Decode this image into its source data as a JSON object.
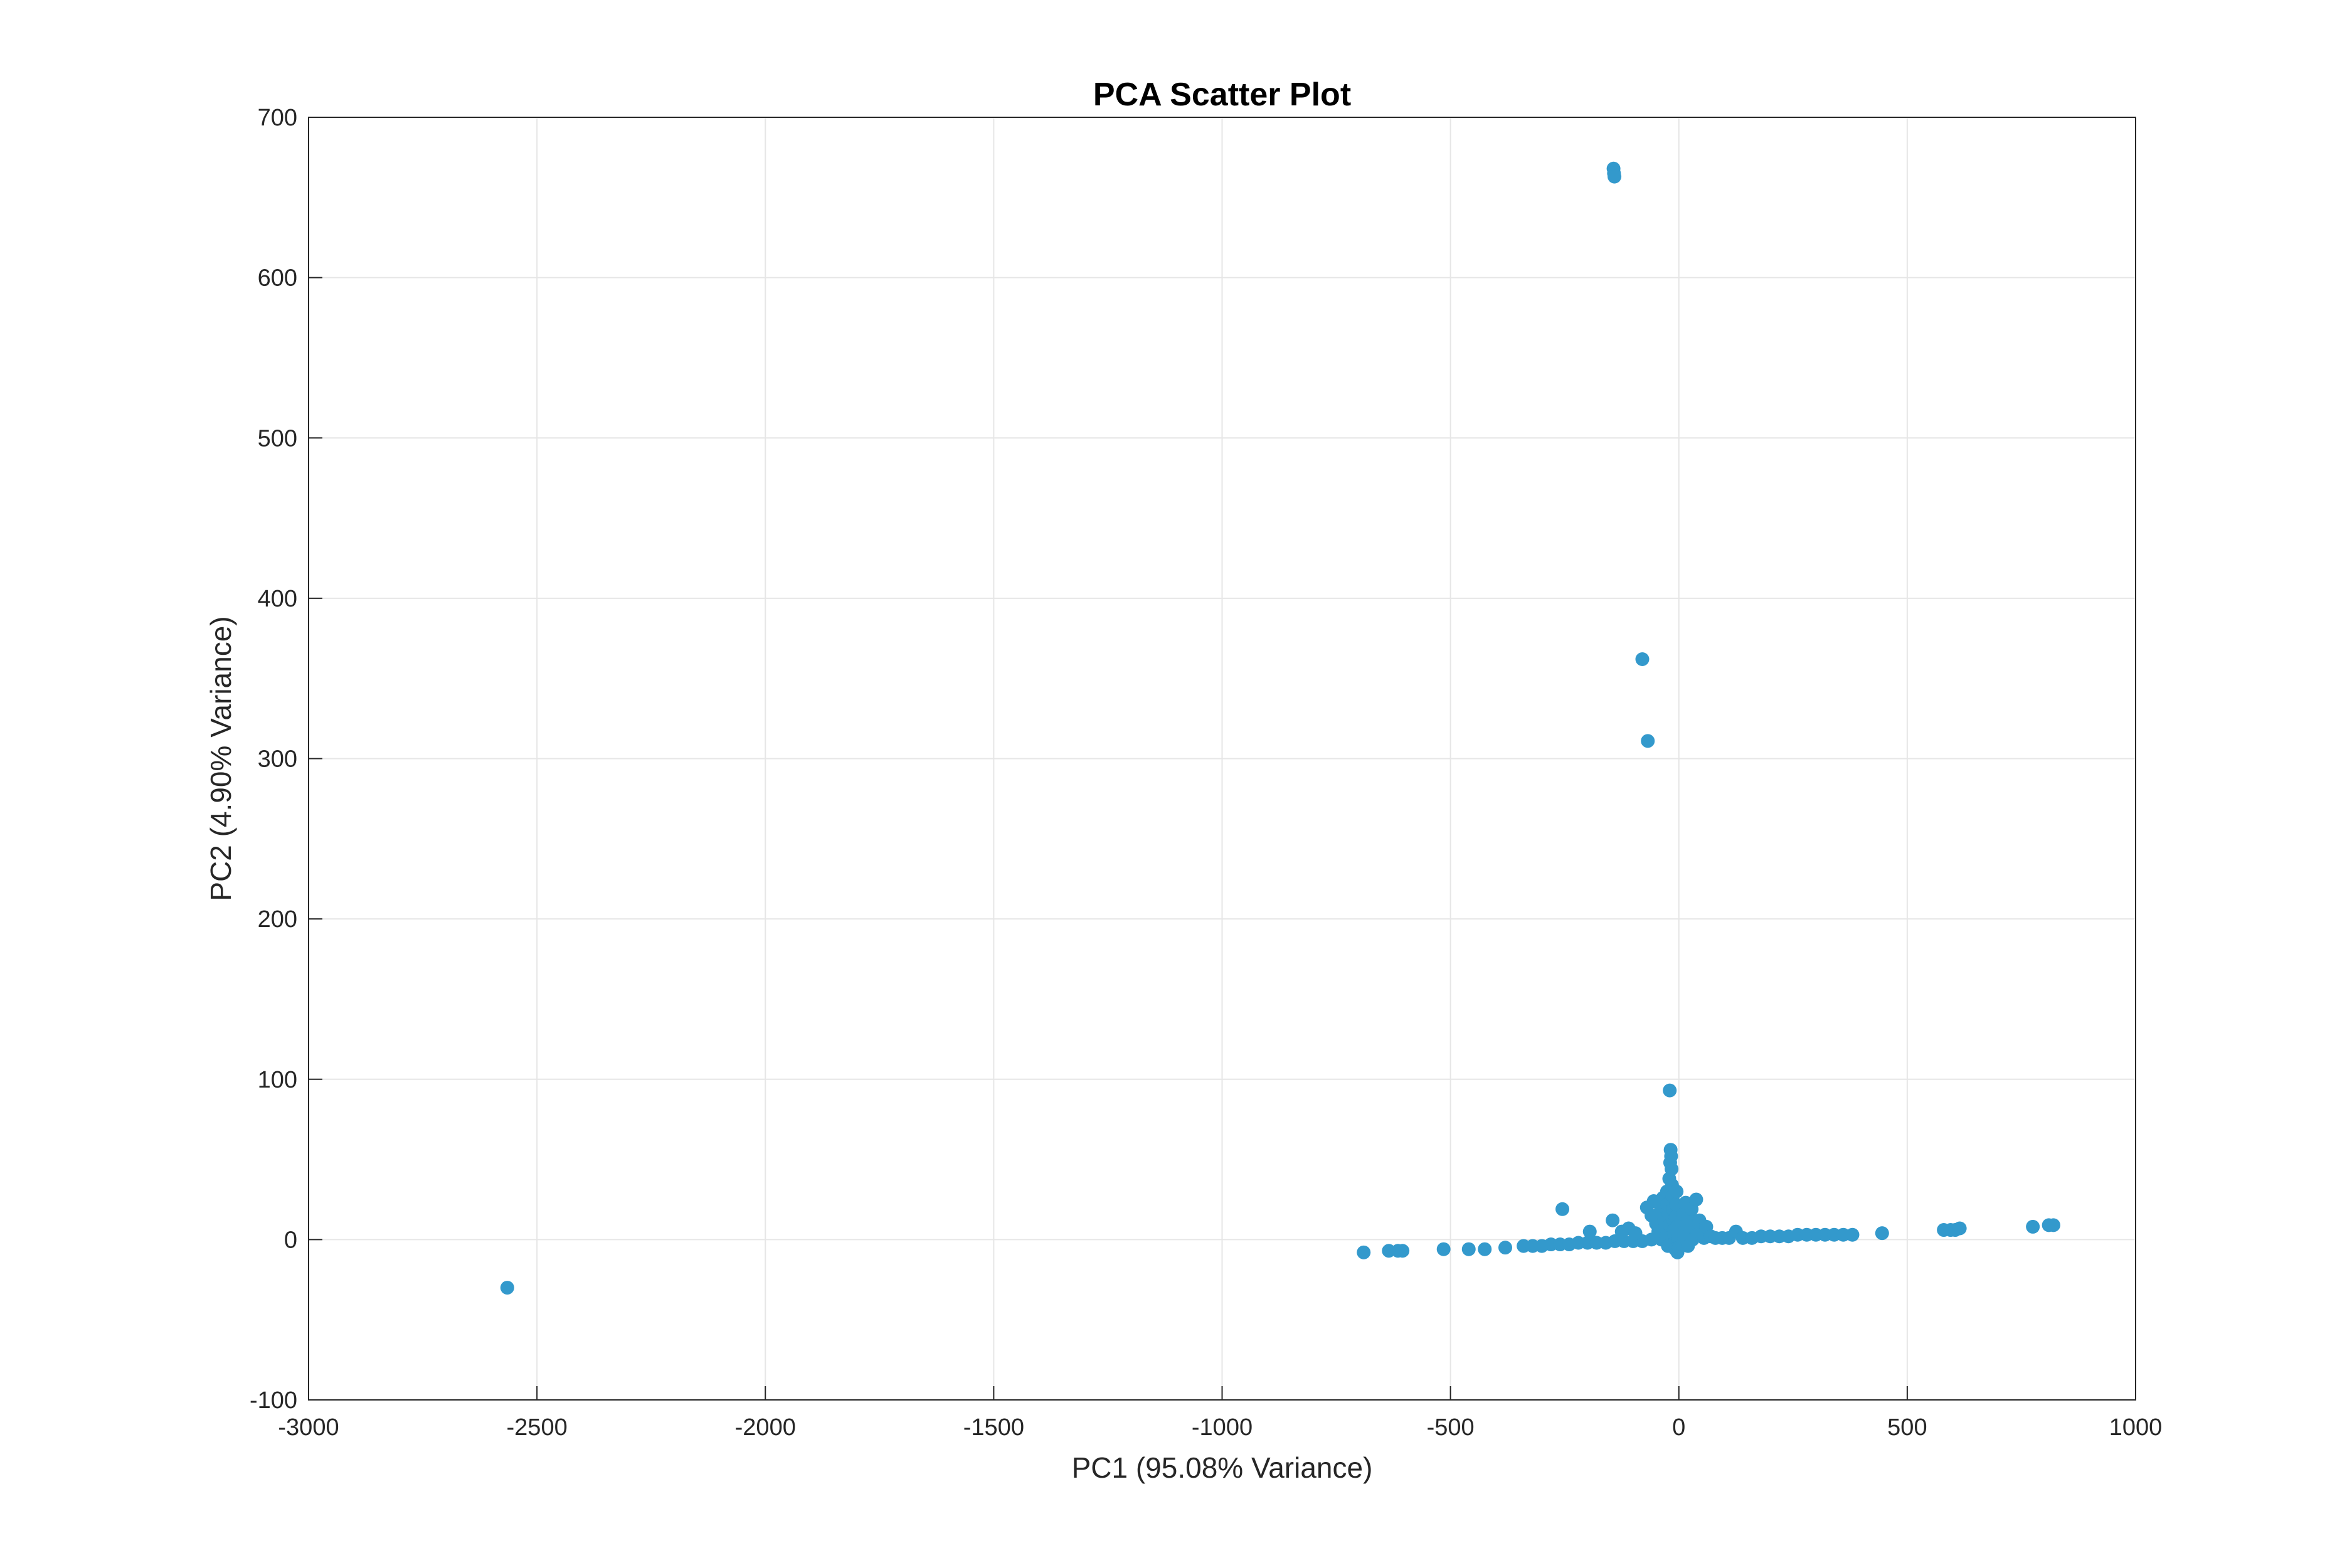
{
  "chart_data": {
    "type": "scatter",
    "title": "PCA Scatter Plot",
    "xlabel": "PC1 (95.08% Variance)",
    "ylabel": "PC2 (4.90% Variance)",
    "xlim": [
      -3000,
      1000
    ],
    "ylim": [
      -100,
      700
    ],
    "xticks": [
      -3000,
      -2500,
      -2000,
      -1500,
      -1000,
      -500,
      0,
      500,
      1000
    ],
    "yticks": [
      -100,
      0,
      100,
      200,
      300,
      400,
      500,
      600,
      700
    ],
    "xtick_labels": [
      "-3000",
      "-2500",
      "-2000",
      "-1500",
      "-1000",
      "-500",
      "0",
      "500",
      "1000"
    ],
    "ytick_labels": [
      "-100",
      "0",
      "100",
      "200",
      "300",
      "400",
      "500",
      "600",
      "700"
    ],
    "grid": true,
    "marker_color": "#3399cc",
    "points": [
      {
        "x": -2565,
        "y": -30
      },
      {
        "x": -143,
        "y": 668
      },
      {
        "x": -142,
        "y": 665
      },
      {
        "x": -141,
        "y": 663
      },
      {
        "x": -80,
        "y": 362
      },
      {
        "x": -68,
        "y": 311
      },
      {
        "x": -20,
        "y": 93
      },
      {
        "x": -690,
        "y": -8
      },
      {
        "x": -635,
        "y": -7
      },
      {
        "x": -615,
        "y": -7
      },
      {
        "x": -605,
        "y": -7
      },
      {
        "x": -515,
        "y": -6
      },
      {
        "x": -460,
        "y": -6
      },
      {
        "x": -425,
        "y": -6
      },
      {
        "x": -380,
        "y": -5
      },
      {
        "x": -340,
        "y": -4
      },
      {
        "x": -320,
        "y": -4
      },
      {
        "x": -300,
        "y": -4
      },
      {
        "x": -280,
        "y": -3
      },
      {
        "x": -260,
        "y": -3
      },
      {
        "x": -240,
        "y": -3
      },
      {
        "x": -220,
        "y": -2
      },
      {
        "x": -200,
        "y": -2
      },
      {
        "x": -180,
        "y": -2
      },
      {
        "x": -160,
        "y": -2
      },
      {
        "x": -140,
        "y": -1
      },
      {
        "x": -120,
        "y": -1
      },
      {
        "x": -100,
        "y": -1
      },
      {
        "x": -80,
        "y": -1
      },
      {
        "x": -60,
        "y": 0
      },
      {
        "x": -255,
        "y": 19
      },
      {
        "x": -195,
        "y": 5
      },
      {
        "x": -145,
        "y": 12
      },
      {
        "x": -125,
        "y": 5
      },
      {
        "x": -110,
        "y": 7
      },
      {
        "x": -95,
        "y": 4
      },
      {
        "x": -70,
        "y": 20
      },
      {
        "x": -60,
        "y": 15
      },
      {
        "x": -55,
        "y": 24
      },
      {
        "x": -50,
        "y": 10
      },
      {
        "x": -45,
        "y": 5
      },
      {
        "x": -40,
        "y": 18
      },
      {
        "x": -38,
        "y": 0
      },
      {
        "x": -35,
        "y": 26
      },
      {
        "x": -32,
        "y": 13
      },
      {
        "x": -30,
        "y": 8
      },
      {
        "x": -28,
        "y": 2
      },
      {
        "x": -26,
        "y": 30
      },
      {
        "x": -25,
        "y": 22
      },
      {
        "x": -24,
        "y": -4
      },
      {
        "x": -22,
        "y": 16
      },
      {
        "x": -21,
        "y": 38
      },
      {
        "x": -20,
        "y": 9
      },
      {
        "x": -19,
        "y": 48
      },
      {
        "x": -18,
        "y": 56
      },
      {
        "x": -17,
        "y": 52
      },
      {
        "x": -16,
        "y": 44
      },
      {
        "x": -15,
        "y": 34
      },
      {
        "x": -14,
        "y": 27
      },
      {
        "x": -13,
        "y": 19
      },
      {
        "x": -12,
        "y": 12
      },
      {
        "x": -11,
        "y": 6
      },
      {
        "x": -10,
        "y": 3
      },
      {
        "x": -9,
        "y": -2
      },
      {
        "x": -8,
        "y": -6
      },
      {
        "x": -7,
        "y": 14
      },
      {
        "x": -6,
        "y": 22
      },
      {
        "x": -5,
        "y": 30
      },
      {
        "x": -4,
        "y": 8
      },
      {
        "x": -3,
        "y": -8
      },
      {
        "x": -2,
        "y": 1
      },
      {
        "x": 0,
        "y": -5
      },
      {
        "x": 2,
        "y": 4
      },
      {
        "x": 5,
        "y": 11
      },
      {
        "x": 8,
        "y": -3
      },
      {
        "x": 10,
        "y": 16
      },
      {
        "x": 12,
        "y": 2
      },
      {
        "x": 15,
        "y": 23
      },
      {
        "x": 18,
        "y": 7
      },
      {
        "x": 20,
        "y": -4
      },
      {
        "x": 22,
        "y": 13
      },
      {
        "x": 25,
        "y": 5
      },
      {
        "x": 28,
        "y": 19
      },
      {
        "x": 30,
        "y": 0
      },
      {
        "x": 35,
        "y": 9
      },
      {
        "x": 38,
        "y": 25
      },
      {
        "x": 40,
        "y": 3
      },
      {
        "x": 45,
        "y": 12
      },
      {
        "x": 50,
        "y": 6
      },
      {
        "x": 55,
        "y": 1
      },
      {
        "x": 60,
        "y": 8
      },
      {
        "x": 70,
        "y": 2
      },
      {
        "x": 80,
        "y": 1
      },
      {
        "x": 95,
        "y": 1
      },
      {
        "x": 110,
        "y": 1
      },
      {
        "x": 125,
        "y": 5
      },
      {
        "x": 140,
        "y": 1
      },
      {
        "x": 160,
        "y": 1
      },
      {
        "x": 180,
        "y": 2
      },
      {
        "x": 200,
        "y": 2
      },
      {
        "x": 220,
        "y": 2
      },
      {
        "x": 240,
        "y": 2
      },
      {
        "x": 260,
        "y": 3
      },
      {
        "x": 280,
        "y": 3
      },
      {
        "x": 300,
        "y": 3
      },
      {
        "x": 320,
        "y": 3
      },
      {
        "x": 340,
        "y": 3
      },
      {
        "x": 360,
        "y": 3
      },
      {
        "x": 380,
        "y": 3
      },
      {
        "x": 445,
        "y": 4
      },
      {
        "x": 580,
        "y": 6
      },
      {
        "x": 595,
        "y": 6
      },
      {
        "x": 605,
        "y": 6
      },
      {
        "x": 615,
        "y": 7
      },
      {
        "x": 775,
        "y": 8
      },
      {
        "x": 810,
        "y": 9
      },
      {
        "x": 820,
        "y": 9
      }
    ]
  }
}
